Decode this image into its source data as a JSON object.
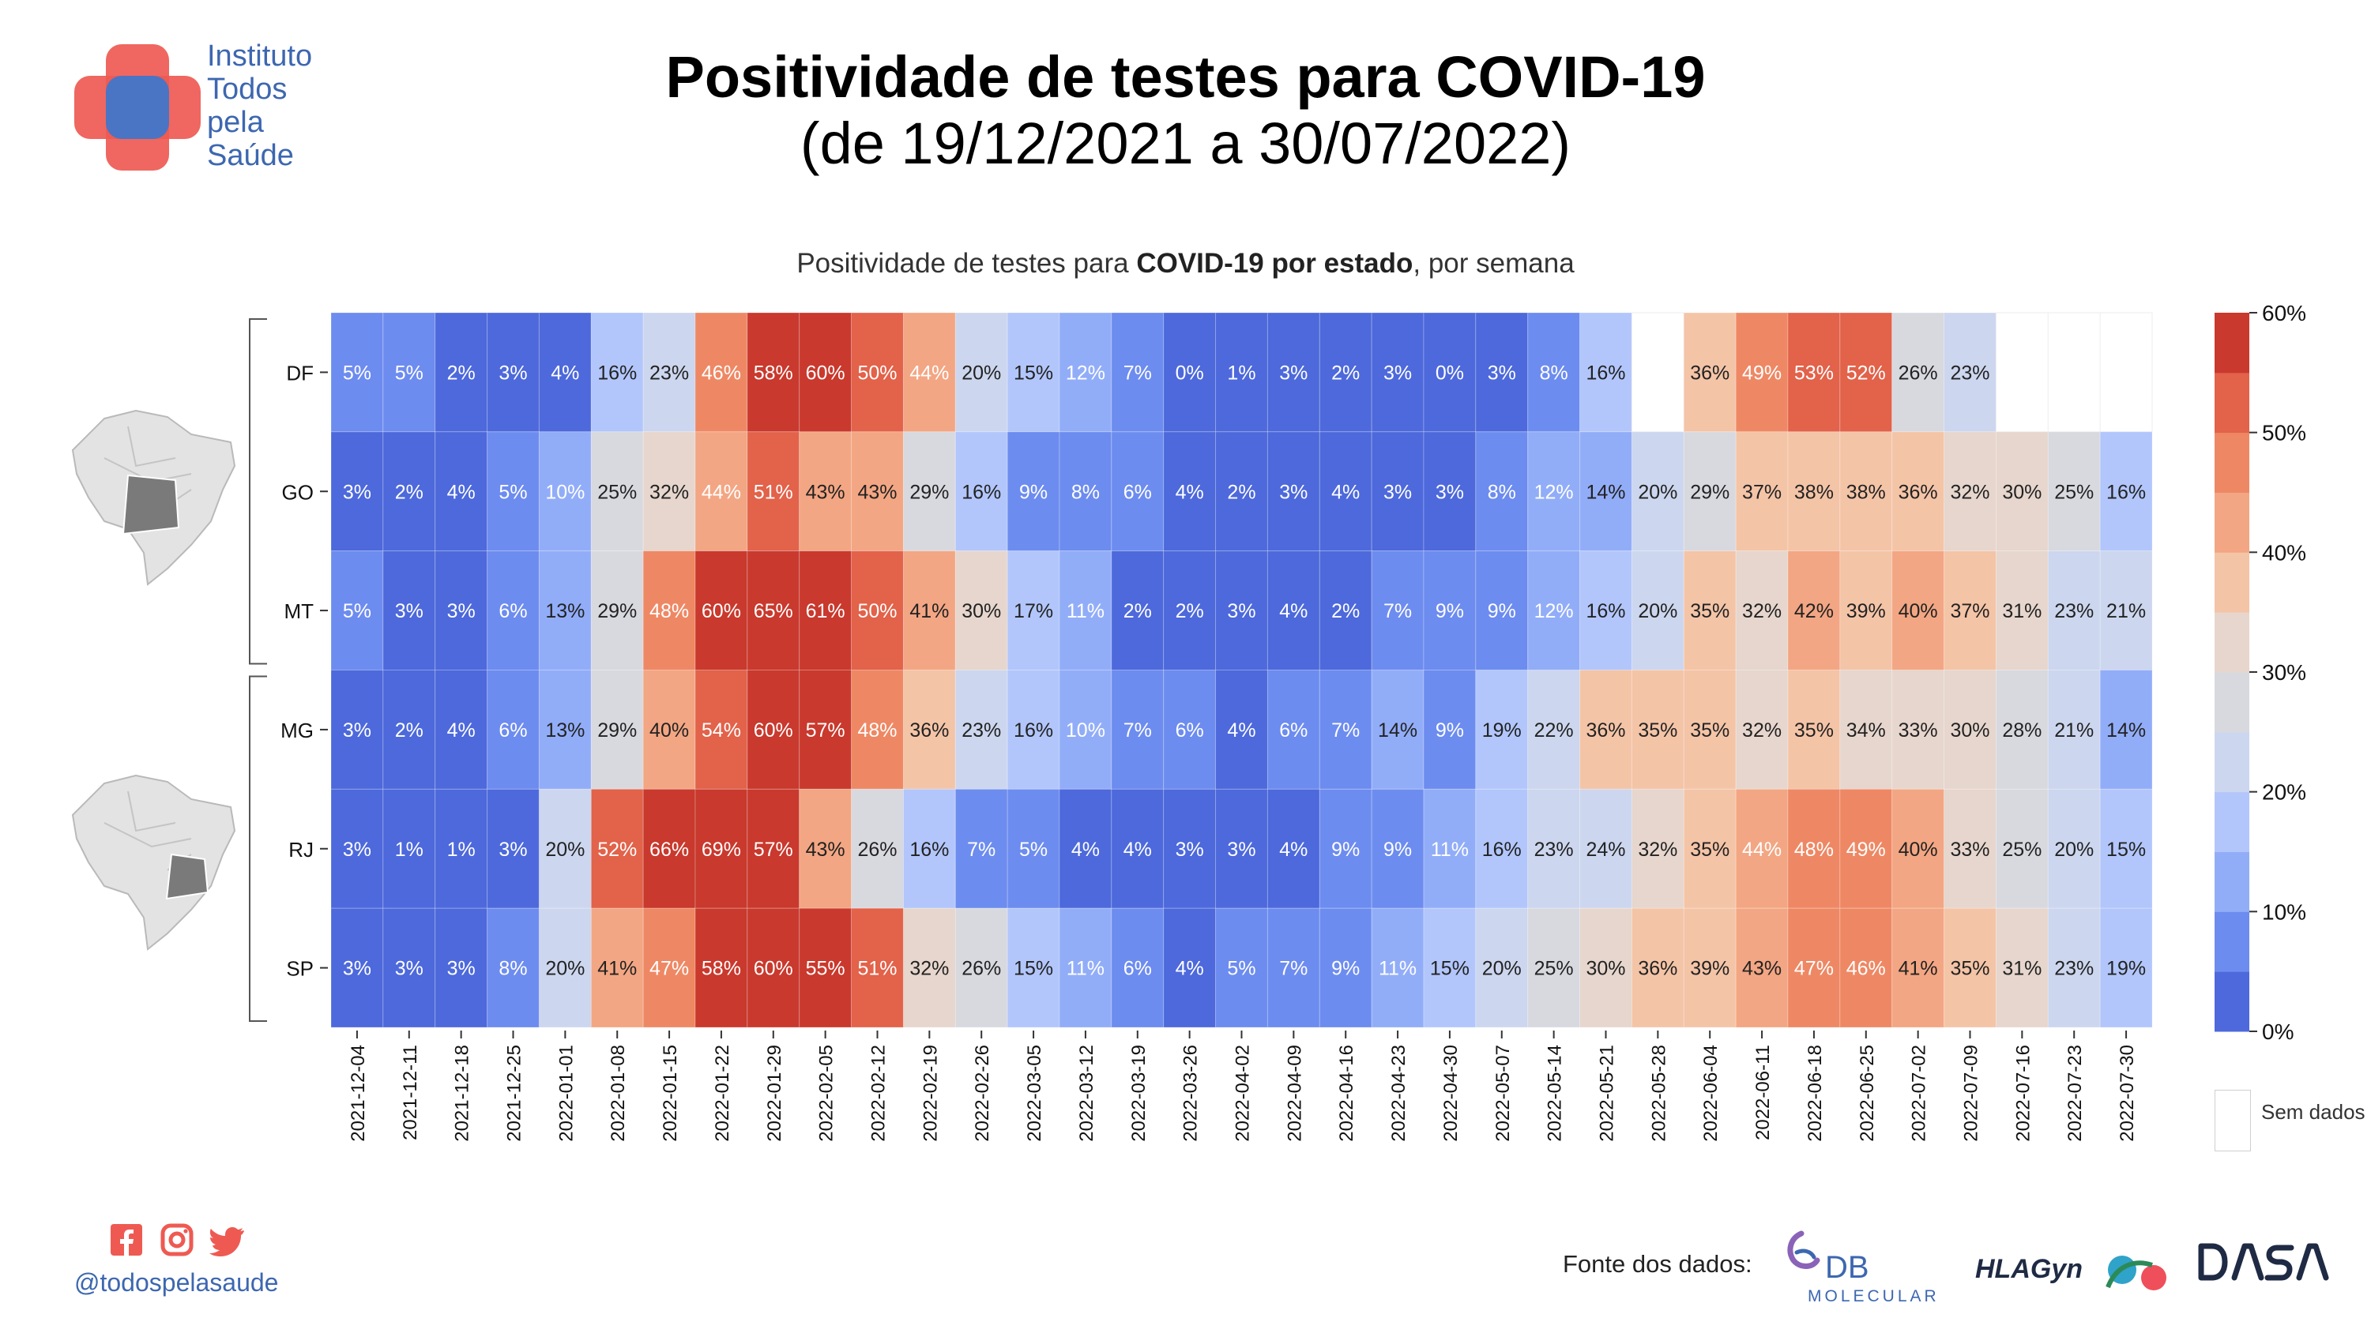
{
  "header": {
    "title_line1": "Positividade de testes para COVID-19",
    "title_line2": "(de 19/12/2021 a 30/07/2022)"
  },
  "logo": {
    "lines": [
      "Instituto",
      "Todos",
      "pela",
      "Saúde"
    ],
    "icon": "cross-logo-icon",
    "colors": {
      "red": "#ee5a52",
      "blue": "#4a75c4"
    }
  },
  "chart_heading": {
    "prefix": "Positividade de testes para ",
    "bold": "COVID-19 por estado",
    "suffix": ", por semana"
  },
  "chart_data": {
    "type": "heatmap",
    "title": "Positividade de testes para COVID-19 por estado, por semana",
    "x": [
      "2021-12-04",
      "2021-12-11",
      "2021-12-18",
      "2021-12-25",
      "2022-01-01",
      "2022-01-08",
      "2022-01-15",
      "2022-01-22",
      "2022-01-29",
      "2022-02-05",
      "2022-02-12",
      "2022-02-19",
      "2022-02-26",
      "2022-03-05",
      "2022-03-12",
      "2022-03-19",
      "2022-03-26",
      "2022-04-02",
      "2022-04-09",
      "2022-04-16",
      "2022-04-23",
      "2022-04-30",
      "2022-05-07",
      "2022-05-14",
      "2022-05-21",
      "2022-05-28",
      "2022-06-04",
      "2022-06-11",
      "2022-06-18",
      "2022-06-25",
      "2022-07-02",
      "2022-07-09",
      "2022-07-16",
      "2022-07-23",
      "2022-07-30"
    ],
    "y": [
      "DF",
      "GO",
      "MT",
      "MG",
      "RJ",
      "SP"
    ],
    "values": [
      [
        5,
        5,
        2,
        3,
        4,
        16,
        23,
        46,
        58,
        60,
        50,
        44,
        20,
        15,
        12,
        7,
        0,
        1,
        3,
        2,
        3,
        0,
        3,
        8,
        16,
        null,
        36,
        49,
        53,
        52,
        26,
        23,
        null,
        null,
        null
      ],
      [
        3,
        2,
        4,
        5,
        10,
        25,
        32,
        44,
        51,
        43,
        43,
        29,
        16,
        9,
        8,
        6,
        4,
        2,
        3,
        4,
        3,
        3,
        8,
        12,
        14,
        20,
        29,
        37,
        38,
        38,
        36,
        32,
        30,
        25,
        16
      ],
      [
        5,
        3,
        3,
        6,
        13,
        29,
        48,
        60,
        65,
        61,
        50,
        41,
        30,
        17,
        11,
        2,
        2,
        3,
        4,
        2,
        7,
        9,
        9,
        12,
        16,
        20,
        35,
        32,
        42,
        39,
        40,
        37,
        31,
        23,
        21
      ],
      [
        3,
        2,
        4,
        6,
        13,
        29,
        40,
        54,
        60,
        57,
        48,
        36,
        23,
        16,
        10,
        7,
        6,
        4,
        6,
        7,
        14,
        9,
        19,
        22,
        36,
        35,
        35,
        32,
        35,
        34,
        33,
        30,
        28,
        21,
        14
      ],
      [
        3,
        1,
        1,
        3,
        20,
        52,
        66,
        69,
        57,
        43,
        26,
        16,
        7,
        5,
        4,
        4,
        3,
        3,
        4,
        9,
        9,
        11,
        16,
        23,
        24,
        32,
        35,
        44,
        48,
        49,
        40,
        33,
        25,
        20,
        15
      ],
      [
        3,
        3,
        3,
        8,
        20,
        41,
        47,
        58,
        60,
        55,
        51,
        32,
        26,
        15,
        11,
        6,
        4,
        5,
        7,
        9,
        11,
        15,
        20,
        25,
        30,
        36,
        39,
        43,
        47,
        46,
        41,
        35,
        31,
        23,
        19
      ]
    ],
    "unit": "%",
    "groups": [
      [
        "DF",
        "GO",
        "MT"
      ],
      [
        "MG",
        "RJ",
        "SP"
      ]
    ],
    "colorbar": {
      "ticks": [
        "0%",
        "10%",
        "20%",
        "30%",
        "40%",
        "50%",
        "60%"
      ],
      "min": 0,
      "max": 60,
      "bins": 12,
      "colors": [
        "#4d69db",
        "#6d8cef",
        "#92adf8",
        "#b2c6fb",
        "#ccd6ee",
        "#d8d9df",
        "#e6d6cd",
        "#f4c4a7",
        "#f3a683",
        "#ee8864",
        "#e2624a",
        "#c9392d"
      ]
    },
    "no_data_label": "Sem dados",
    "grid": true
  },
  "footer": {
    "handle": "@todospelasaude",
    "social_icons": [
      "facebook-icon",
      "instagram-icon",
      "twitter-icon"
    ],
    "source_label": "Fonte dos dados:",
    "sources": [
      {
        "name": "DB",
        "sub": "MOLECULAR"
      },
      {
        "name": "HLAGyn"
      },
      {
        "name": "DASA"
      }
    ]
  }
}
